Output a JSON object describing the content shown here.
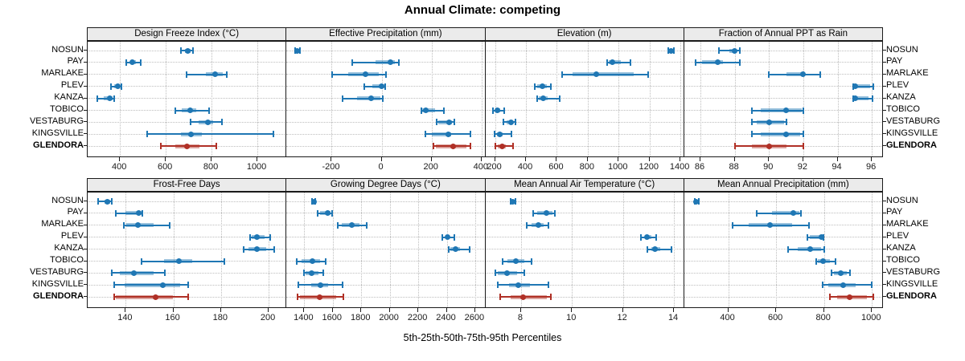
{
  "chart_data": {
    "type": "dotplot-percentiles",
    "title": "Annual Climate: competing",
    "caption": "5th-25th-50th-75th-95th Percentiles",
    "percentiles": [
      5,
      25,
      50,
      75,
      95
    ],
    "sites": [
      "NOSUN",
      "PAY",
      "MARLAKE",
      "PLEV",
      "KANZA",
      "TOBICO",
      "VESTABURG",
      "KINGSVILLE",
      "GLENDORA"
    ],
    "highlight_site": "GLENDORA",
    "colors": {
      "point_normal": "#1f77b4",
      "point_highlight": "#b03026",
      "grid": "#bdbdbd",
      "strip_bg": "#ebebeb",
      "border": "#1a1a1a"
    },
    "legend_position": "none",
    "grid": "dotted",
    "panels": [
      {
        "title": "Design Freeze Index (°C)",
        "ticks": [
          400,
          600,
          800,
          1000
        ],
        "range": [
          259,
          1127
        ],
        "values": {
          "NOSUN": [
            665,
            685,
            696,
            710,
            720
          ],
          "PAY": [
            426,
            444,
            455,
            470,
            491
          ],
          "MARLAKE": [
            690,
            775,
            815,
            848,
            866
          ],
          "PLEV": [
            360,
            375,
            389,
            400,
            408
          ],
          "KANZA": [
            302,
            330,
            354,
            368,
            375
          ],
          "TOBICO": [
            640,
            670,
            706,
            733,
            789
          ],
          "VESTABURG": [
            709,
            742,
            783,
            806,
            844
          ],
          "KINGSVILLE": [
            520,
            665,
            710,
            756,
            1071
          ],
          "GLENDORA": [
            580,
            641,
            692,
            746,
            822
          ]
        }
      },
      {
        "title": "Effective Precipitation (mm)",
        "ticks": [
          -200,
          0,
          200,
          400
        ],
        "range": [
          -381,
          415
        ],
        "values": {
          "NOSUN": [
            -345,
            -340,
            -337,
            -333,
            -328
          ],
          "PAY": [
            -118,
            -25,
            35,
            53,
            68
          ],
          "MARLAKE": [
            -197,
            -135,
            -65,
            -10,
            16
          ],
          "PLEV": [
            -70,
            -37,
            0,
            10,
            14
          ],
          "KANZA": [
            -155,
            -100,
            -42,
            -5,
            3
          ],
          "TOBICO": [
            158,
            161,
            177,
            215,
            249
          ],
          "VESTABURG": [
            220,
            228,
            270,
            283,
            291
          ],
          "KINGSVILLE": [
            174,
            200,
            268,
            278,
            354
          ],
          "GLENDORA": [
            207,
            216,
            287,
            340,
            355
          ]
        }
      },
      {
        "title": "Elevation (m)",
        "ticks": [
          200,
          400,
          600,
          800,
          1000,
          1200,
          1400
        ],
        "range": [
          137,
          1424
        ],
        "values": {
          "NOSUN": [
            1320,
            1331,
            1337,
            1344,
            1356
          ],
          "PAY": [
            928,
            936,
            960,
            1015,
            1078
          ],
          "MARLAKE": [
            635,
            700,
            855,
            1095,
            1190
          ],
          "PLEV": [
            458,
            475,
            504,
            537,
            559
          ],
          "KANZA": [
            472,
            481,
            511,
            542,
            621
          ],
          "TOBICO": [
            188,
            200,
            217,
            235,
            258
          ],
          "VESTABURG": [
            253,
            275,
            302,
            318,
            331
          ],
          "KINGSVILLE": [
            195,
            210,
            230,
            250,
            305
          ],
          "GLENDORA": [
            200,
            220,
            247,
            270,
            317
          ]
        }
      },
      {
        "title": "Fraction of Annual PPT as Rain",
        "ticks": [
          86,
          88,
          90,
          92,
          94,
          96
        ],
        "range": [
          85.05,
          96.65
        ],
        "values": {
          "NOSUN": [
            87.1,
            87.7,
            88.0,
            88.1,
            88.3
          ],
          "PAY": [
            85.7,
            86.1,
            87.0,
            87.3,
            88.3
          ],
          "MARLAKE": [
            90.0,
            91.0,
            92.0,
            92.1,
            93.0
          ],
          "PLEV": [
            94.9,
            95.0,
            95.05,
            95.9,
            96.1
          ],
          "KANZA": [
            94.9,
            95.0,
            95.05,
            95.8,
            96.05
          ],
          "TOBICO": [
            89.0,
            89.5,
            91.0,
            91.9,
            92.0
          ],
          "VESTABURG": [
            89.0,
            89.3,
            90.0,
            90.9,
            91.0
          ],
          "KINGSVILLE": [
            89.0,
            89.5,
            91.0,
            91.8,
            92.0
          ],
          "GLENDORA": [
            88.0,
            89.0,
            90.0,
            91.0,
            92.0
          ]
        }
      },
      {
        "title": "Frost-Free Days",
        "ticks": [
          140,
          160,
          180,
          200
        ],
        "range": [
          124,
          207.5
        ],
        "values": {
          "NOSUN": [
            128.5,
            131.0,
            132.4,
            133.3,
            134.1
          ],
          "PAY": [
            135.7,
            140.0,
            145.3,
            146.6,
            147.1
          ],
          "MARLAKE": [
            139.1,
            140.2,
            145.0,
            151.6,
            158.4
          ],
          "PLEV": [
            192.2,
            192.8,
            195.2,
            198.2,
            200.6
          ],
          "KANZA": [
            189.6,
            191.5,
            195.2,
            199.0,
            202.5
          ],
          "TOBICO": [
            146.5,
            156.1,
            162.3,
            168.0,
            181.3
          ],
          "VESTABURG": [
            134.3,
            137.4,
            143.4,
            151.6,
            156.3
          ],
          "KINGSVILLE": [
            135.2,
            139.7,
            155.5,
            162.9,
            166.3
          ],
          "GLENDORA": [
            135.2,
            135.9,
            152.5,
            159.7,
            166.3
          ]
        }
      },
      {
        "title": "Growing Degree Days (°C)",
        "ticks": [
          1400,
          1600,
          1800,
          2000,
          2200,
          2400,
          2600
        ],
        "range": [
          1275,
          2671
        ],
        "values": {
          "NOSUN": [
            1452,
            1459,
            1466,
            1472,
            1478
          ],
          "PAY": [
            1494,
            1512,
            1565,
            1586,
            1596
          ],
          "MARLAKE": [
            1634,
            1665,
            1736,
            1789,
            1841
          ],
          "PLEV": [
            2371,
            2389,
            2404,
            2421,
            2455
          ],
          "KANZA": [
            2412,
            2427,
            2461,
            2492,
            2559
          ],
          "TOBICO": [
            1348,
            1381,
            1456,
            1509,
            1550
          ],
          "VESTABURG": [
            1400,
            1410,
            1450,
            1497,
            1531
          ],
          "KINGSVILLE": [
            1359,
            1447,
            1512,
            1568,
            1671
          ],
          "GLENDORA": [
            1354,
            1372,
            1508,
            1624,
            1677
          ]
        }
      },
      {
        "title": "Mean Annual Air Temperature (°C)",
        "ticks": [
          8,
          10,
          12,
          14
        ],
        "range": [
          6.6,
          14.4
        ],
        "values": {
          "NOSUN": [
            7.6,
            7.64,
            7.68,
            7.73,
            7.78
          ],
          "PAY": [
            8.48,
            8.63,
            9.0,
            9.22,
            9.34
          ],
          "MARLAKE": [
            8.24,
            8.4,
            8.69,
            8.9,
            9.09
          ],
          "PLEV": [
            12.71,
            12.85,
            12.95,
            13.1,
            13.29
          ],
          "KANZA": [
            12.97,
            13.1,
            13.27,
            13.45,
            13.89
          ],
          "TOBICO": [
            7.29,
            7.47,
            7.81,
            8.13,
            8.4
          ],
          "VESTABURG": [
            6.99,
            7.1,
            7.45,
            7.86,
            8.13
          ],
          "KINGSVILLE": [
            7.1,
            7.52,
            7.89,
            8.34,
            9.09
          ],
          "GLENDORA": [
            7.18,
            7.58,
            8.08,
            9.0,
            9.16
          ]
        }
      },
      {
        "title": "Mean Annual Precipitation (mm)",
        "ticks": [
          400,
          600,
          800,
          1000
        ],
        "range": [
          216,
          1046
        ],
        "values": {
          "NOSUN": [
            259,
            264,
            267,
            271,
            276
          ],
          "PAY": [
            519,
            583,
            673,
            696,
            704
          ],
          "MARLAKE": [
            419,
            487,
            574,
            668,
            736
          ],
          "PLEV": [
            732,
            741,
            789,
            795,
            798
          ],
          "KANZA": [
            651,
            691,
            743,
            786,
            800
          ],
          "TOBICO": [
            766,
            775,
            797,
            826,
            848
          ],
          "VESTABURG": [
            832,
            841,
            871,
            894,
            908
          ],
          "KINGSVILLE": [
            795,
            817,
            880,
            933,
            999
          ],
          "GLENDORA": [
            826,
            854,
            908,
            979,
            1005
          ]
        }
      }
    ]
  }
}
